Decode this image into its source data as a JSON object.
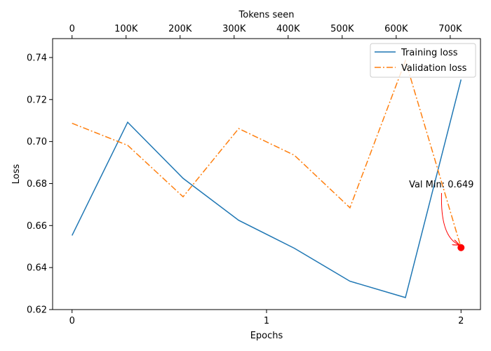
{
  "chart_data": {
    "type": "line",
    "xlabel": "Epochs",
    "ylabel": "Loss",
    "top_xlabel": "Tokens seen",
    "xlim": [
      -0.1,
      2.1
    ],
    "ylim": [
      0.62,
      0.749
    ],
    "x_ticks": [
      0,
      1,
      2
    ],
    "x_tick_labels": [
      "0",
      "1",
      "2"
    ],
    "y_ticks": [
      0.62,
      0.64,
      0.66,
      0.68,
      0.7,
      0.72,
      0.74
    ],
    "y_tick_labels": [
      "0.62",
      "0.64",
      "0.66",
      "0.68",
      "0.70",
      "0.72",
      "0.74"
    ],
    "top_ticks": [
      0,
      100000,
      200000,
      300000,
      400000,
      500000,
      600000,
      700000
    ],
    "top_tick_labels": [
      "0",
      "100K",
      "200K",
      "300K",
      "400K",
      "500K",
      "600K",
      "700K"
    ],
    "tokens_per_epoch": 360000,
    "grid": false,
    "legend_position": "top-right",
    "series": [
      {
        "name": "Training loss",
        "color": "#1f77b4",
        "style": "solid",
        "x": [
          0,
          0.286,
          0.571,
          0.857,
          1.143,
          1.429,
          1.714,
          2.0
        ],
        "values": [
          0.6553,
          0.7092,
          0.6825,
          0.6625,
          0.6492,
          0.6335,
          0.6257,
          0.7295
        ]
      },
      {
        "name": "Validation loss",
        "color": "#ff7f0e",
        "style": "dashdot",
        "x": [
          0,
          0.286,
          0.571,
          0.857,
          1.143,
          1.429,
          1.714,
          2.0
        ],
        "values": [
          0.7087,
          0.6982,
          0.6737,
          0.7062,
          0.6935,
          0.6685,
          0.7385,
          0.6495
        ]
      }
    ],
    "annotation": {
      "text": "Val Min: 0.649",
      "point": [
        2.0,
        0.6495
      ],
      "text_anchor_point": [
        1.9,
        0.6755
      ],
      "marker_color": "#ff0000",
      "arrow_color": "#ff0000"
    }
  }
}
